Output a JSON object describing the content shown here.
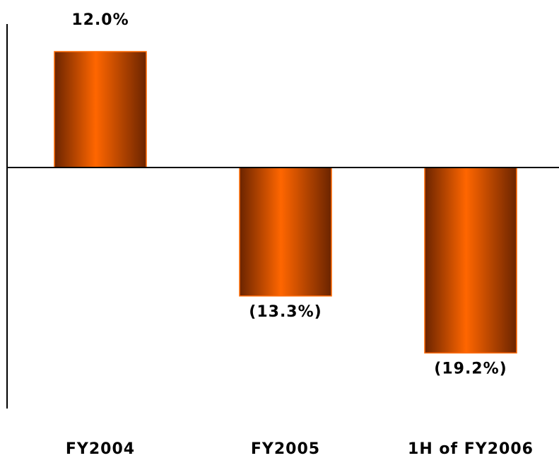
{
  "chart_data": {
    "type": "bar",
    "categories": [
      "FY2004",
      "FY2005",
      "1H of FY2006"
    ],
    "values": [
      12.0,
      -13.3,
      -19.2
    ],
    "data_labels": [
      "12.0%",
      "(13.3%)",
      "(19.2%)"
    ],
    "title": "",
    "xlabel": "",
    "ylabel": "",
    "ylim": [
      -25,
      15
    ],
    "grid": false,
    "legend": "none",
    "colors": {
      "bar_center": "#ff6600",
      "bar_edge": "#6b2400",
      "bar_outline": "#ff6a00",
      "axis": "#000000"
    }
  }
}
